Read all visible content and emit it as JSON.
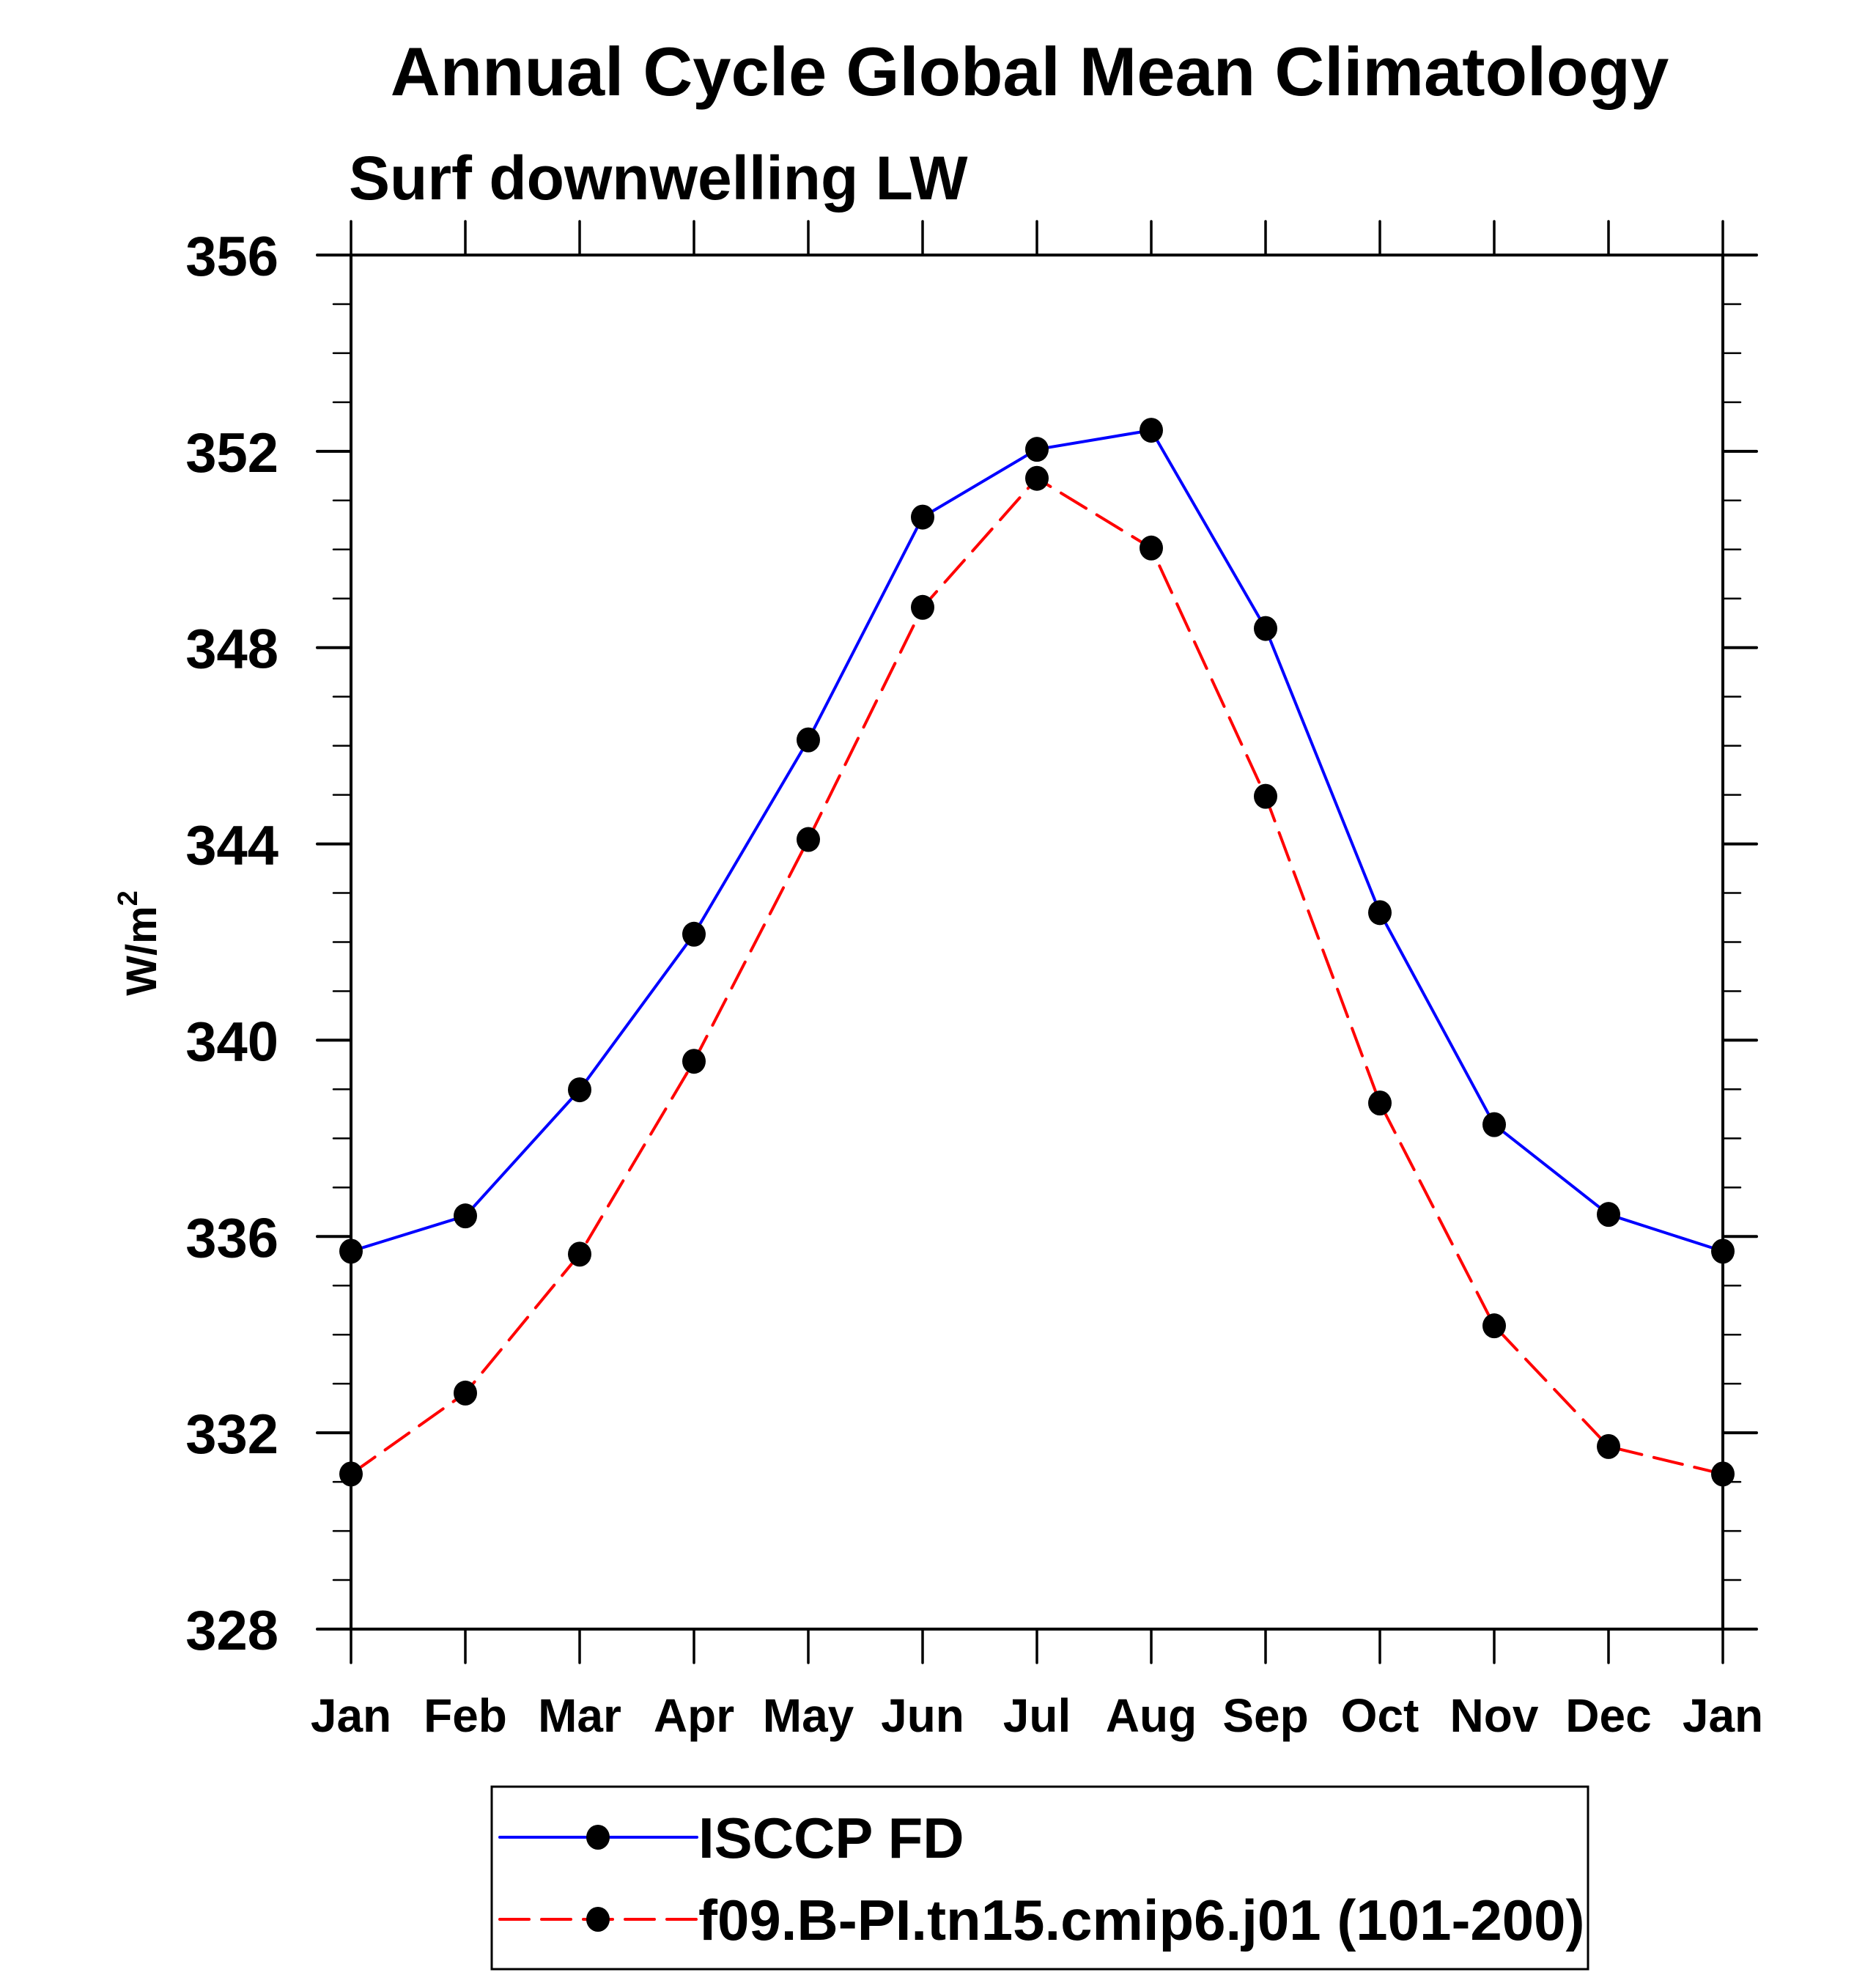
{
  "chart_data": {
    "type": "line",
    "title": "Annual Cycle Global Mean Climatology",
    "subtitle": "Surf downwelling LW",
    "xlabel": "",
    "ylabel": "W/m",
    "ylabel_superscript": "2",
    "categories": [
      "Jan",
      "Feb",
      "Mar",
      "Apr",
      "May",
      "Jun",
      "Jul",
      "Aug",
      "Sep",
      "Oct",
      "Nov",
      "Dec",
      "Jan"
    ],
    "ylim": [
      328,
      356
    ],
    "yticks": [
      328,
      332,
      336,
      340,
      344,
      348,
      352,
      356
    ],
    "yminor_step": 1,
    "grid": false,
    "legend_position": "bottom-center",
    "series": [
      {
        "name": "ISCCP FD",
        "color": "#0000ff",
        "line_style": "solid",
        "marker": "filled-circle",
        "marker_color": "#000000",
        "values": [
          335.7,
          336.42,
          338.99,
          342.16,
          346.12,
          350.66,
          352.04,
          352.43,
          348.39,
          342.6,
          338.28,
          336.45,
          335.7
        ]
      },
      {
        "name": "f09.B-PI.tn15.cmip6.j01 (101-200)",
        "color": "#ff0000",
        "line_style": "dashed",
        "marker": "filled-circle",
        "marker_color": "#000000",
        "values": [
          331.16,
          332.81,
          335.64,
          339.57,
          344.09,
          348.82,
          351.45,
          350.03,
          344.97,
          338.72,
          334.18,
          331.72,
          331.16
        ]
      }
    ]
  }
}
